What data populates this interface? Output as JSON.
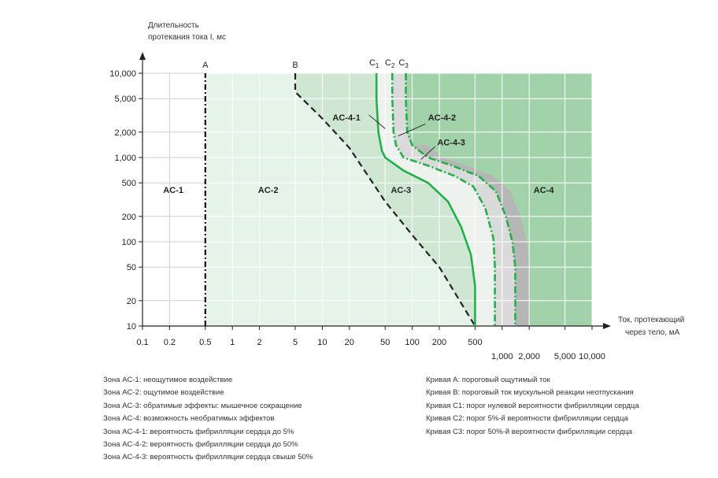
{
  "chart_data": {
    "type": "line",
    "title": "",
    "ylabel": [
      "Длительность",
      "протекания тока I, мс"
    ],
    "xlabel": [
      "Ток, протекающий",
      "через тело, мА"
    ],
    "x_scale": "log",
    "y_scale": "log",
    "xlim": [
      0.1,
      10000
    ],
    "ylim": [
      10,
      10000
    ],
    "x_ticks_upper": [
      "0.1",
      "0.2",
      "0.5",
      "1",
      "2",
      "5",
      "10",
      "20",
      "50",
      "100",
      "200",
      "500"
    ],
    "x_ticks_upper_values": [
      0.1,
      0.2,
      0.5,
      1,
      2,
      5,
      10,
      20,
      50,
      100,
      200,
      500
    ],
    "x_ticks_lower": [
      "1,000",
      "2,000",
      "5,000",
      "10,000"
    ],
    "x_ticks_lower_values": [
      1000,
      2000,
      5000,
      10000
    ],
    "y_ticks": [
      "10,000",
      "5,000",
      "2,000",
      "1,000",
      "500",
      "200",
      "100",
      "50",
      "20",
      "10"
    ],
    "y_ticks_values": [
      10000,
      5000,
      2000,
      1000,
      500,
      200,
      100,
      50,
      20,
      10
    ],
    "grid": true,
    "curve_labels": {
      "A": "A",
      "B": "B",
      "C1": "C",
      "C1_sub": "1",
      "C2": "C",
      "C2_sub": "2",
      "C3": "C",
      "C3_sub": "3"
    },
    "zone_labels": {
      "AC1": "AC-1",
      "AC2": "AC-2",
      "AC3": "AC-3",
      "AC4": "AC-4",
      "AC41": "AC-4-1",
      "AC42": "AC-4-2",
      "AC43": "AC-4-3"
    },
    "zone_colors": {
      "AC1": "#ffffff",
      "AC2": "#e6f3e8",
      "AC3": "#cfe6d3",
      "AC4": "#a2d2a9",
      "AC41": "#eef2ee",
      "AC42": "#d9dad9",
      "AC43": "#b5b6b5"
    },
    "curve_colors": {
      "A": "#111111",
      "B": "#222222",
      "C": "#22b04a"
    },
    "series": [
      {
        "name": "A",
        "style": "dash-dot",
        "points": [
          [
            0.5,
            10
          ],
          [
            0.5,
            10000
          ]
        ]
      },
      {
        "name": "B",
        "style": "dashed",
        "points": [
          [
            5,
            10000
          ],
          [
            5,
            6000
          ],
          [
            10,
            2900
          ],
          [
            20,
            1300
          ],
          [
            50,
            300
          ],
          [
            100,
            120
          ],
          [
            200,
            50
          ],
          [
            500,
            10
          ]
        ]
      },
      {
        "name": "C1",
        "style": "solid",
        "points": [
          [
            40,
            10000
          ],
          [
            40,
            5000
          ],
          [
            42,
            2000
          ],
          [
            46,
            1200
          ],
          [
            50,
            1000
          ],
          [
            80,
            700
          ],
          [
            150,
            500
          ],
          [
            250,
            300
          ],
          [
            350,
            150
          ],
          [
            450,
            70
          ],
          [
            500,
            30
          ],
          [
            500,
            10
          ]
        ]
      },
      {
        "name": "C2",
        "style": "dash-dot",
        "points": [
          [
            60,
            10000
          ],
          [
            60,
            5000
          ],
          [
            62,
            2000
          ],
          [
            66,
            1400
          ],
          [
            80,
            1000
          ],
          [
            150,
            800
          ],
          [
            300,
            600
          ],
          [
            480,
            450
          ],
          [
            650,
            250
          ],
          [
            800,
            110
          ],
          [
            830,
            50
          ],
          [
            830,
            10
          ]
        ]
      },
      {
        "name": "C3",
        "style": "dash-dot",
        "points": [
          [
            85,
            10000
          ],
          [
            85,
            5000
          ],
          [
            88,
            2000
          ],
          [
            100,
            1400
          ],
          [
            150,
            1000
          ],
          [
            280,
            800
          ],
          [
            550,
            600
          ],
          [
            850,
            400
          ],
          [
            1100,
            200
          ],
          [
            1300,
            100
          ],
          [
            1400,
            50
          ],
          [
            1400,
            10
          ]
        ]
      }
    ]
  },
  "legend_left": [
    "Зона AC-1: неощутимое воздействие",
    "Зона AC-2: ощутимое воздействие",
    "Зона AC-3: обратимые эффекты: мышечное сокращение",
    "Зона AC-4: возможность необратимых эффектов",
    "Зона AC-4-1: вероятность фибрилляции сердца до 5%",
    "Зона AC-4-2: вероятность фибрилляции сердца до 50%",
    "Зона AC-4-3: вероятность фибрилляции сердца свыше 50%"
  ],
  "legend_right": [
    "Кривая A: пороговый ощутимый ток",
    "Кривая B: пороговый ток мускульной реакции неотпускания",
    "Кривая C1: порог нулевой вероятности фибрилляции сердца",
    "Кривая C2: порог 5%-й вероятности фибрилляции сердца",
    "Кривая C3: порог 50%-й вероятности фибрилляции сердца"
  ]
}
